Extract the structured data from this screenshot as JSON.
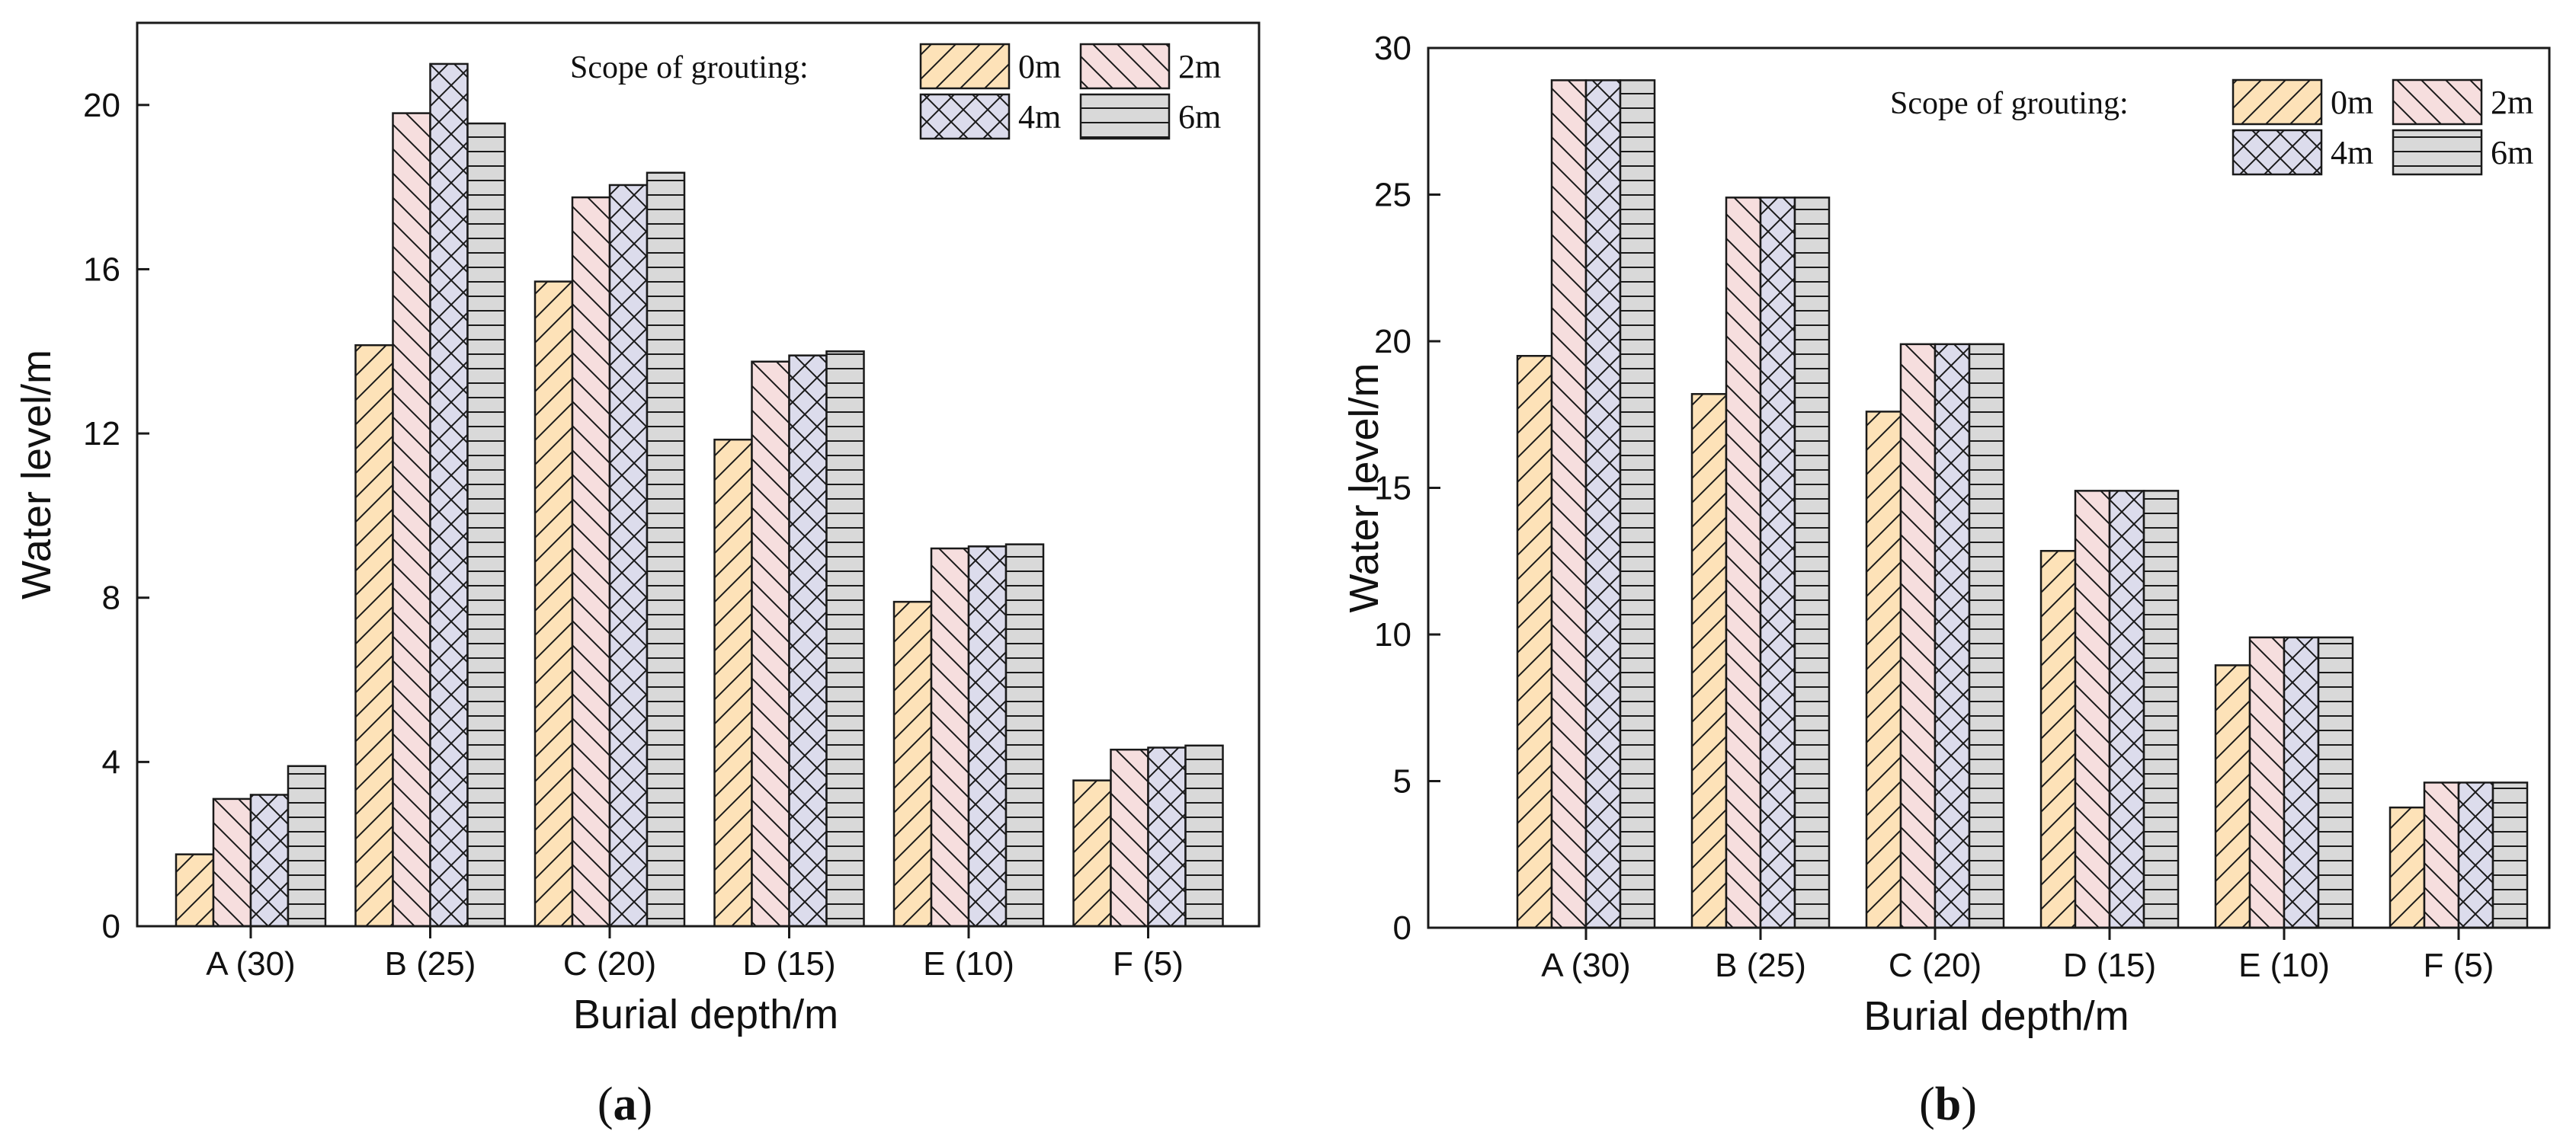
{
  "colors": {
    "0m": "#fde2b8",
    "2m": "#f6dede",
    "4m": "#dcdcec",
    "6m": "#d9d9d9",
    "stroke": "#1a1a1a"
  },
  "chart_data": [
    {
      "type": "bar",
      "panel_label": "(a)",
      "xlabel": "Burial depth/m",
      "ylabel": "Water level/m",
      "categories": [
        "A (30)",
        "B (25)",
        "C (20)",
        "D (15)",
        "E (10)",
        "F (5)"
      ],
      "ylim": [
        0,
        22
      ],
      "yticks": [
        0,
        4,
        8,
        12,
        16,
        20
      ],
      "legend_title": "Scope of grouting:",
      "legend_position": "top-right",
      "grid": false,
      "series": [
        {
          "name": "0m",
          "pattern": "forward-diagonal",
          "values": [
            1.75,
            14.15,
            15.7,
            11.85,
            7.9,
            3.55
          ]
        },
        {
          "name": "2m",
          "pattern": "back-diagonal",
          "values": [
            3.1,
            19.8,
            17.75,
            13.75,
            9.2,
            4.3
          ]
        },
        {
          "name": "4m",
          "pattern": "crosshatch",
          "values": [
            3.2,
            21.0,
            18.05,
            13.9,
            9.25,
            4.35
          ]
        },
        {
          "name": "6m",
          "pattern": "horizontal",
          "values": [
            3.9,
            19.55,
            18.35,
            14.0,
            9.3,
            4.4
          ]
        }
      ]
    },
    {
      "type": "bar",
      "panel_label": "(b)",
      "xlabel": "Burial depth/m",
      "ylabel": "Water level/m",
      "categories": [
        "A (30)",
        "B (25)",
        "C (20)",
        "D (15)",
        "E (10)",
        "F (5)"
      ],
      "ylim": [
        0,
        30
      ],
      "yticks": [
        0,
        5,
        10,
        15,
        20,
        25,
        30
      ],
      "legend_title": "Scope of grouting:",
      "legend_position": "top-right",
      "grid": false,
      "series": [
        {
          "name": "0m",
          "pattern": "forward-diagonal",
          "values": [
            19.5,
            18.2,
            17.6,
            12.85,
            8.95,
            4.1
          ]
        },
        {
          "name": "2m",
          "pattern": "back-diagonal",
          "values": [
            28.9,
            24.9,
            19.9,
            14.9,
            9.9,
            4.95
          ]
        },
        {
          "name": "4m",
          "pattern": "crosshatch",
          "values": [
            28.9,
            24.9,
            19.9,
            14.9,
            9.9,
            4.95
          ]
        },
        {
          "name": "6m",
          "pattern": "horizontal",
          "values": [
            28.9,
            24.9,
            19.9,
            14.9,
            9.9,
            4.95
          ]
        }
      ]
    }
  ]
}
